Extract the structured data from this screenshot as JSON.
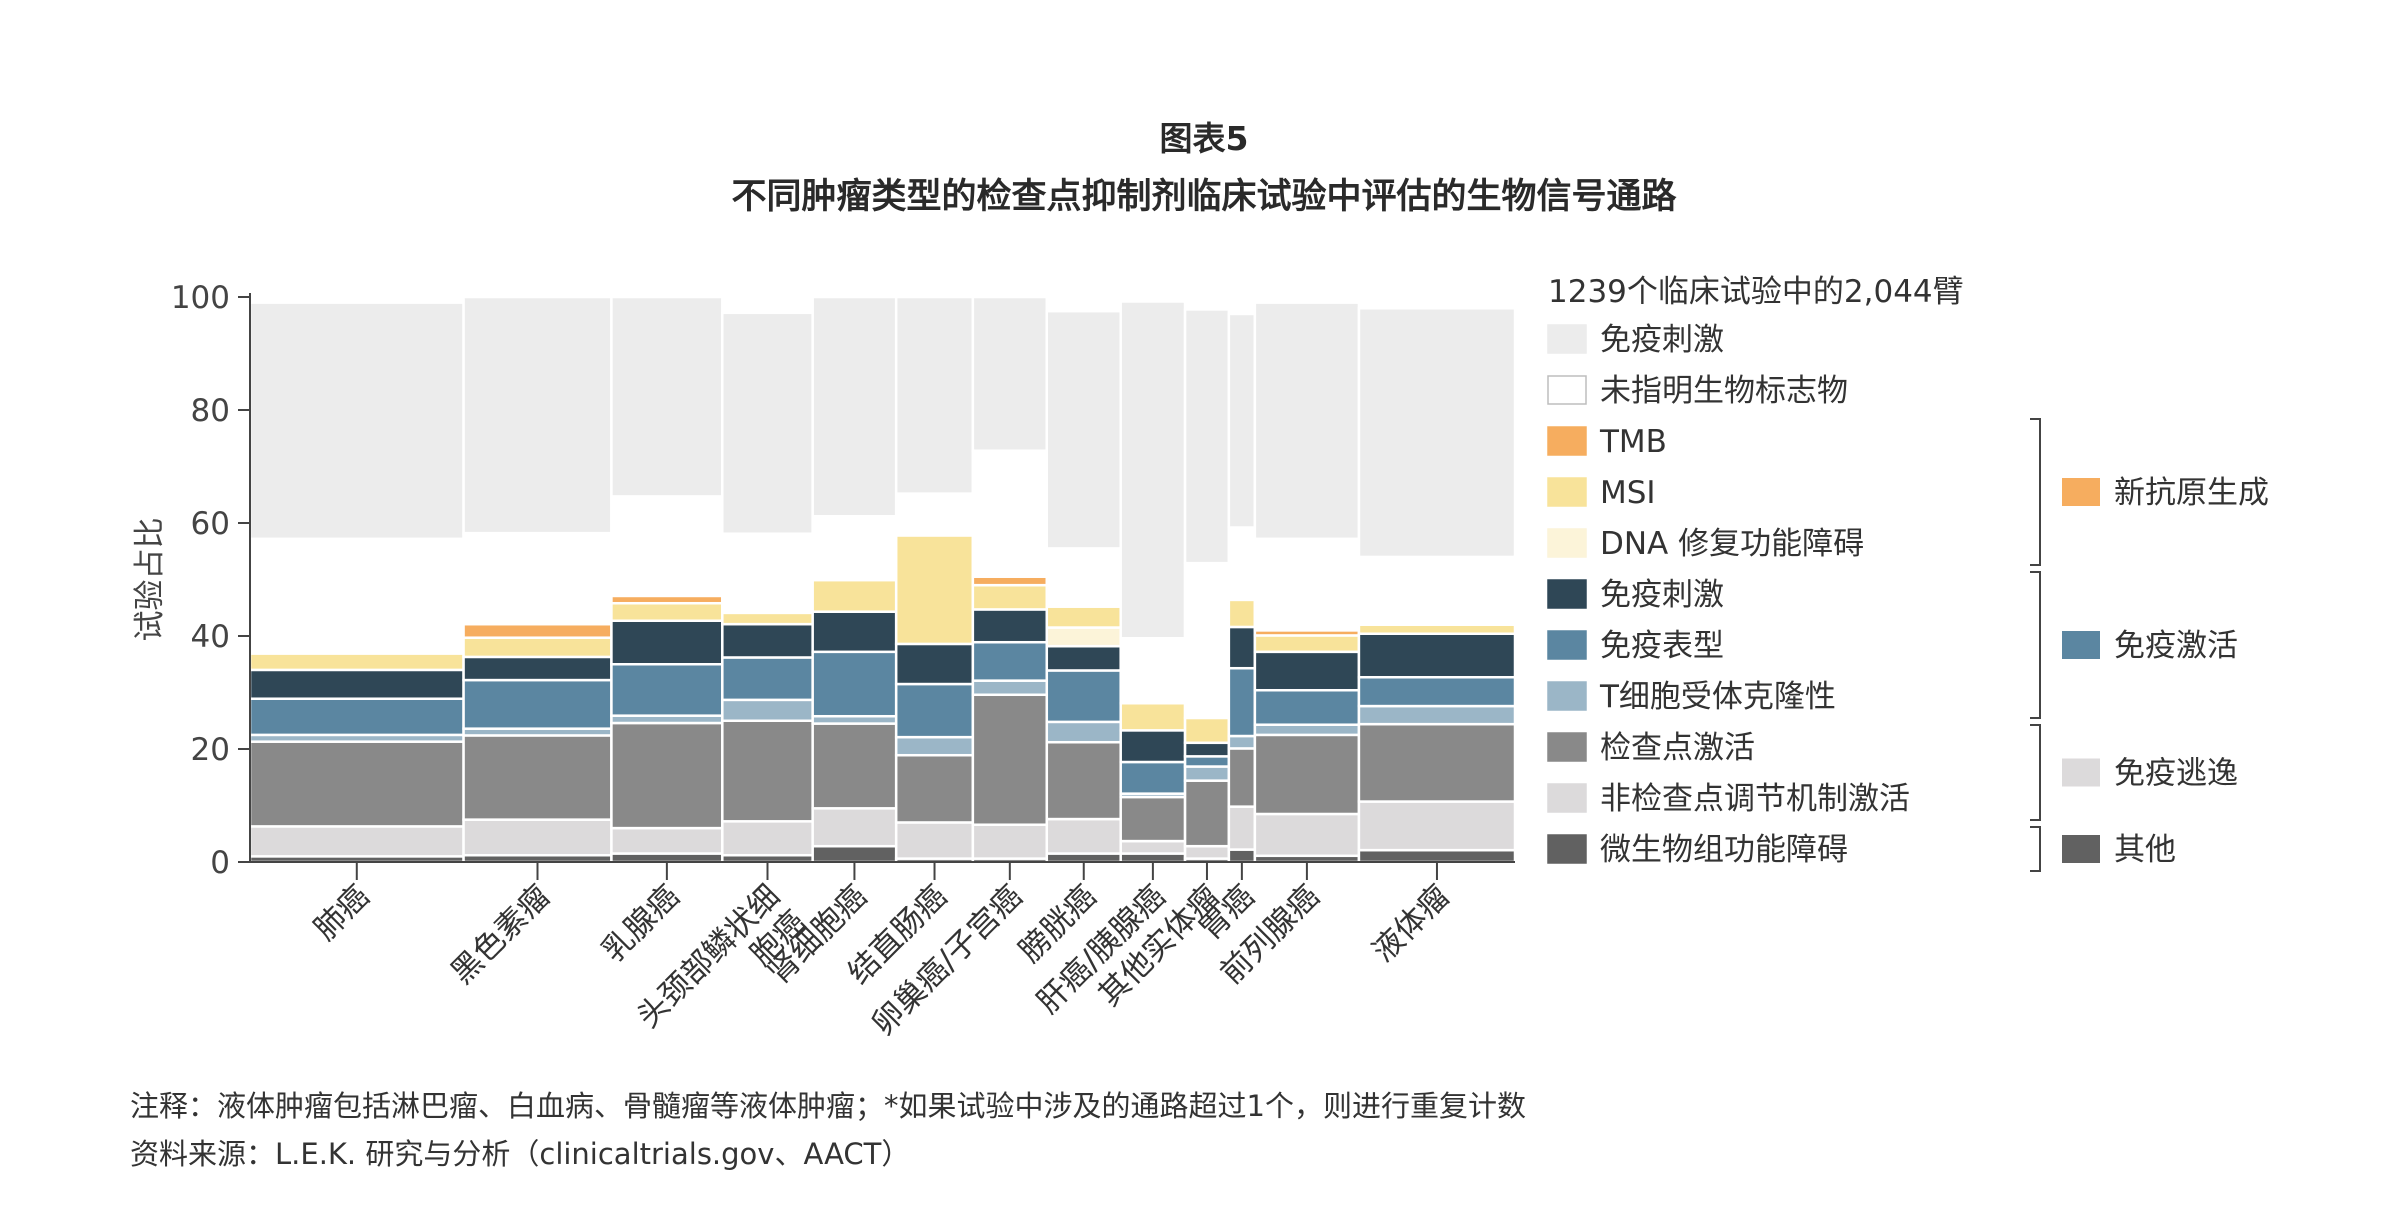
{
  "figure_label": "图表5",
  "title": "不同肿瘤类型的检查点抑制剂临床试验中评估的生物信号通路",
  "note": "注释：液体肿瘤包括淋巴瘤、白血病、骨髓瘤等液体肿瘤；*如果试验中涉及的通路超过1个，则进行重复计数",
  "source": "资料来源：L.E.K. 研究与分析（clinicaltrials.gov、AACT）",
  "chart_data": {
    "type": "bar",
    "subtype": "marimekko stacked bar (variable column width)",
    "ylabel": "试验占比",
    "ylim": [
      0,
      100
    ],
    "yticks": [
      0,
      20,
      40,
      60,
      80,
      100
    ],
    "legend_header": "1239个临床试验中的2,044臂",
    "legend_placement": "right",
    "categories": [
      {
        "label": "肺癌",
        "width": 15.6
      },
      {
        "label": "黑色素瘤",
        "width": 10.8
      },
      {
        "label": "乳腺癌",
        "width": 8.1
      },
      {
        "label": "头颈部鳞状细胞癌",
        "lines": [
          "头颈部鳞状细",
          "胞癌"
        ],
        "width": 6.6
      },
      {
        "label": "肾细胞癌",
        "width": 6.1
      },
      {
        "label": "结直肠癌",
        "width": 5.6
      },
      {
        "label": "卵巢癌/子宫癌",
        "width": 5.4
      },
      {
        "label": "膀胱癌",
        "width": 5.4
      },
      {
        "label": "肝癌/胰腺癌",
        "width": 4.7
      },
      {
        "label": "其他实体瘤",
        "width": 3.2
      },
      {
        "label": "胃癌",
        "width": 1.9
      },
      {
        "label": "前列腺癌",
        "width": 7.6
      },
      {
        "label": "液体瘤",
        "width": 11.4
      }
    ],
    "series": [
      {
        "name": "微生物组功能障碍",
        "color": "#616161",
        "values": [
          1,
          1.2,
          1.5,
          1.2,
          2.8,
          0.6,
          0.6,
          1.5,
          1.5,
          0.6,
          2.2,
          1.1,
          2.1
        ]
      },
      {
        "name": "非检查点调节机制激活",
        "color": "#dcdadb",
        "values": [
          5.3,
          6.3,
          4.5,
          6,
          6.7,
          6.4,
          6,
          6.1,
          2.2,
          2.2,
          7.6,
          7.4,
          8.6
        ]
      },
      {
        "name": "检查点激活",
        "color": "#898989",
        "values": [
          15,
          14.9,
          18.6,
          17.8,
          15,
          11.9,
          23,
          13.6,
          7.8,
          11.6,
          10.3,
          14,
          13.7
        ]
      },
      {
        "name": "T细胞受体克隆性",
        "color": "#9bb6c7",
        "values": [
          1.2,
          1.2,
          1.3,
          3.7,
          1.3,
          3.2,
          2.5,
          3.6,
          0.6,
          2.5,
          2.2,
          1.8,
          3.2
        ]
      },
      {
        "name": "免疫表型",
        "color": "#5b86a1",
        "values": [
          6.4,
          8.6,
          9.1,
          7.5,
          11.4,
          9.4,
          6.8,
          9.1,
          5.6,
          1.8,
          12,
          6.1,
          5.1
        ]
      },
      {
        "name": "免疫刺激",
        "color": "#2f4756",
        "values": [
          5.1,
          4.1,
          7.7,
          5.9,
          7.1,
          7.1,
          5.8,
          4.3,
          5.6,
          2.4,
          7.3,
          6.8,
          7.7
        ]
      },
      {
        "name": "DNA 修复功能障碍",
        "color": "#fcf4d9",
        "values": [
          0,
          0,
          0,
          0,
          0,
          0,
          0,
          3.3,
          0,
          0,
          0,
          0,
          0
        ]
      },
      {
        "name": "MSI",
        "color": "#f8e39a",
        "values": [
          2.9,
          3.4,
          3.1,
          2,
          5.6,
          19.2,
          4.3,
          3.7,
          4.8,
          4.4,
          4.8,
          2.9,
          1.6
        ]
      },
      {
        "name": "TMB",
        "color": "#f6ad5f",
        "values": [
          0,
          2.4,
          1.3,
          0,
          0,
          0,
          1.5,
          0,
          0,
          0,
          0,
          0.9,
          0
        ]
      },
      {
        "name": "未指明生物标志物",
        "color": "#ffffff",
        "values": [
          20.3,
          16.1,
          17.6,
          14,
          11.3,
          7.4,
          22.3,
          10.3,
          11.5,
          27.4,
          12.8,
          16.2,
          12
        ]
      },
      {
        "name": "免疫刺激",
        "color": "#ececec",
        "values": [
          41.8,
          41.8,
          35.3,
          39.1,
          38.8,
          34.8,
          27.2,
          42,
          59.6,
          44.9,
          37.8,
          41.8,
          44
        ]
      }
    ],
    "groups": [
      {
        "name": "新抗原生成",
        "color": "#f6ad5f",
        "members": [
          "TMB",
          "MSI",
          "DNA 修复功能障碍"
        ]
      },
      {
        "name": "免疫激活",
        "color": "#5b86a1",
        "members": [
          "免疫刺激",
          "免疫表型",
          "T细胞受体克隆性"
        ]
      },
      {
        "name": "免疫逃逸",
        "color": "#dcdadb",
        "members": [
          "检查点激活",
          "非检查点调节机制激活"
        ]
      },
      {
        "name": "其他",
        "color": "#616161",
        "members": [
          "微生物组功能障碍"
        ]
      }
    ]
  }
}
